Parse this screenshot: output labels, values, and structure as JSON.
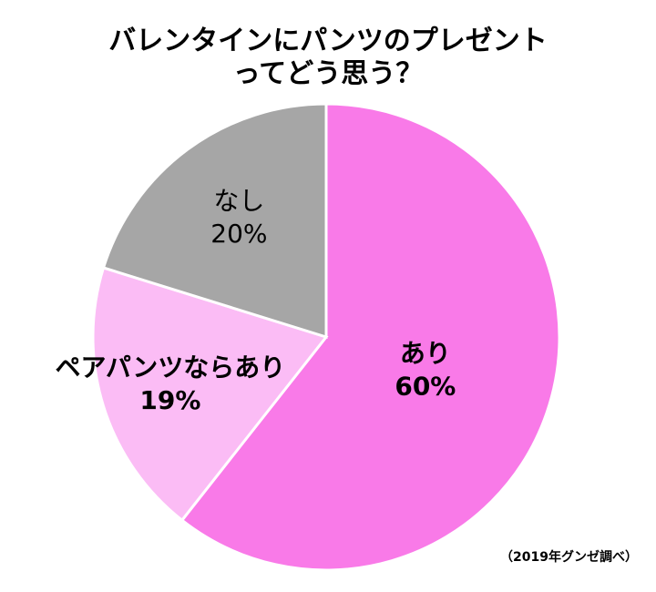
{
  "chart_data": {
    "type": "pie",
    "title": [
      "バレンタインにパンツのプレゼント",
      "ってどう思う？"
    ],
    "categories": [
      "あり",
      "ペアパンツならあり",
      "なし"
    ],
    "values": [
      60,
      19,
      20
    ],
    "value_labels": [
      "60%",
      "19%",
      "20%"
    ],
    "colors": [
      "#f97ae8",
      "#fbbcf5",
      "#a6a6a6"
    ],
    "label_bold": [
      true,
      true,
      false
    ],
    "source": "（2019年グンゼ調べ）"
  }
}
